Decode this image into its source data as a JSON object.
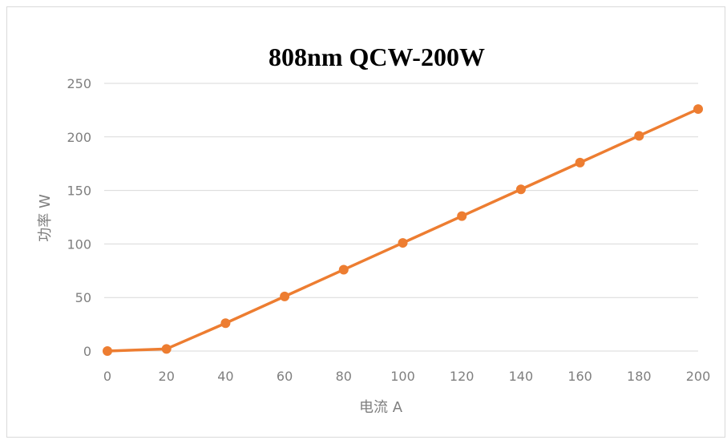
{
  "chart_data": {
    "type": "line",
    "title": "808nm QCW-200W",
    "xlabel": "电流 A",
    "ylabel": "功率 W",
    "x": [
      0,
      20,
      40,
      60,
      80,
      100,
      120,
      140,
      160,
      180,
      200
    ],
    "series": [
      {
        "values": [
          0,
          2,
          26,
          51,
          76,
          101,
          126,
          151,
          176,
          201,
          226
        ]
      }
    ],
    "xlim": [
      0,
      200
    ],
    "ylim": [
      0,
      250
    ],
    "xticks": [
      "0",
      "20",
      "40",
      "60",
      "80",
      "100",
      "120",
      "140",
      "160",
      "180",
      "200"
    ],
    "yticks": [
      "0",
      "50",
      "100",
      "150",
      "200",
      "250"
    ],
    "grid": "horizontal",
    "legend": "none",
    "colors": {
      "line": "#ed7d31",
      "grid": "#d9d9d9",
      "text": "#7f7f7f"
    }
  }
}
